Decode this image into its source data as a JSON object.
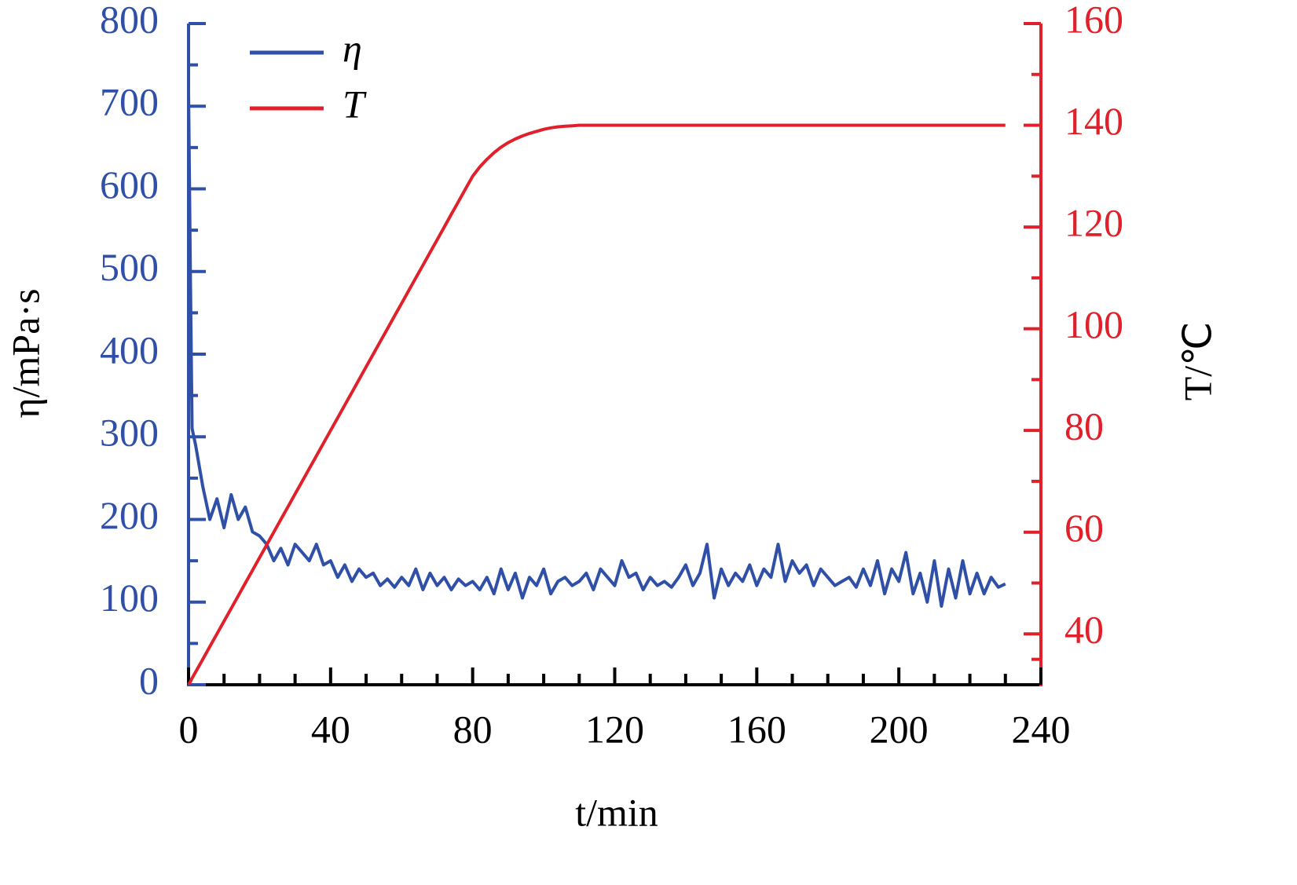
{
  "chart_data": {
    "type": "line",
    "xlabel": "t/min",
    "ylabel": "η/mPa·s",
    "y2label": "T/℃",
    "x": [
      0,
      0.5,
      1,
      2,
      4,
      6,
      8,
      10,
      12,
      14,
      16,
      18,
      20,
      22,
      24,
      26,
      28,
      30,
      32,
      34,
      36,
      38,
      40,
      42,
      44,
      46,
      48,
      50,
      52,
      54,
      56,
      58,
      60,
      62,
      64,
      66,
      68,
      70,
      72,
      74,
      76,
      78,
      80,
      82,
      84,
      86,
      88,
      90,
      92,
      94,
      96,
      98,
      100,
      102,
      104,
      106,
      108,
      110,
      112,
      114,
      116,
      118,
      120,
      122,
      124,
      126,
      128,
      130,
      132,
      134,
      136,
      138,
      140,
      142,
      144,
      146,
      148,
      150,
      152,
      154,
      156,
      158,
      160,
      162,
      164,
      166,
      168,
      170,
      172,
      174,
      176,
      178,
      180,
      182,
      184,
      186,
      188,
      190,
      192,
      194,
      196,
      198,
      200,
      202,
      204,
      206,
      208,
      210,
      212,
      214,
      216,
      218,
      220,
      222,
      224,
      226,
      228,
      230
    ],
    "series": [
      {
        "name": "η",
        "color": "#3050a8",
        "axis": "y",
        "values": [
          720,
          500,
          310,
          290,
          240,
          200,
          225,
          190,
          230,
          200,
          215,
          185,
          180,
          170,
          150,
          165,
          145,
          170,
          160,
          150,
          170,
          145,
          150,
          130,
          145,
          125,
          140,
          130,
          135,
          120,
          128,
          118,
          130,
          120,
          140,
          115,
          135,
          120,
          130,
          115,
          128,
          120,
          125,
          115,
          130,
          110,
          140,
          115,
          135,
          105,
          130,
          120,
          140,
          110,
          125,
          130,
          120,
          125,
          135,
          115,
          140,
          130,
          120,
          150,
          130,
          135,
          115,
          130,
          120,
          125,
          118,
          130,
          145,
          120,
          135,
          170,
          105,
          140,
          120,
          135,
          125,
          145,
          120,
          140,
          130,
          170,
          125,
          150,
          135,
          145,
          120,
          140,
          130,
          120,
          125,
          130,
          118,
          140,
          120,
          150,
          110,
          140,
          125,
          160,
          110,
          135,
          100,
          150,
          95,
          140,
          105,
          150,
          110,
          135,
          110,
          130,
          118,
          122
        ]
      },
      {
        "name": "T",
        "color": "#e0202a",
        "axis": "y2",
        "values": [
          30,
          30.6,
          31.3,
          32.5,
          35,
          37.5,
          40,
          42.5,
          45,
          47.5,
          50,
          52.5,
          55,
          57.5,
          60,
          62.5,
          65,
          67.5,
          70,
          72.5,
          75,
          77.5,
          80,
          82.5,
          85,
          87.5,
          90,
          92.5,
          95,
          97.5,
          100,
          102.5,
          105,
          107.5,
          110,
          112.5,
          115,
          117.5,
          120,
          122.5,
          125,
          127.5,
          130,
          131.8,
          133.3,
          134.6,
          135.7,
          136.6,
          137.3,
          137.9,
          138.4,
          138.8,
          139.2,
          139.5,
          139.7,
          139.8,
          139.9,
          140,
          140,
          140,
          140,
          140,
          140,
          140,
          140,
          140,
          140,
          140,
          140,
          140,
          140,
          140,
          140,
          140,
          140,
          140,
          140,
          140,
          140,
          140,
          140,
          140,
          140,
          140,
          140,
          140,
          140,
          140,
          140,
          140,
          140,
          140,
          140,
          140,
          140,
          140,
          140,
          140,
          140,
          140,
          140,
          140,
          140,
          140,
          140,
          140,
          140,
          140,
          140,
          140,
          140,
          140,
          140,
          140,
          140,
          140,
          140,
          140
        ]
      }
    ],
    "xlim": [
      0,
      240
    ],
    "xticks": [
      0,
      40,
      80,
      120,
      160,
      200,
      240
    ],
    "ylim": [
      0,
      800
    ],
    "yticks": [
      0,
      100,
      200,
      300,
      400,
      500,
      600,
      700,
      800
    ],
    "y2lim": [
      30,
      160
    ],
    "y2ticks": [
      40,
      60,
      80,
      100,
      120,
      140,
      160
    ]
  }
}
